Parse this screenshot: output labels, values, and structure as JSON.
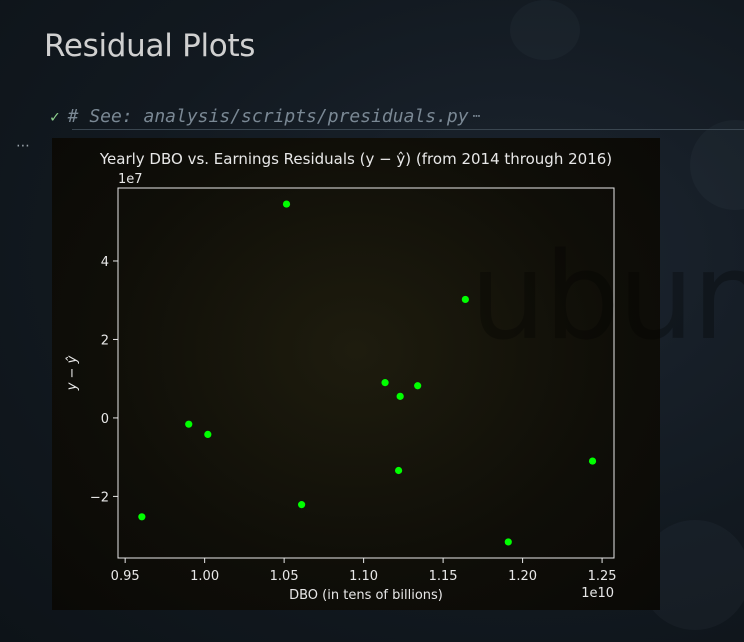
{
  "page": {
    "heading": "Residual Plots",
    "code_comment": "# See: analysis/scripts/presiduals.py",
    "code_ellipsis": "⋯",
    "gutter_dots": "⋯",
    "watermark": "ubuntu"
  },
  "colors": {
    "point": "#00ff00",
    "axis": "#e8e8e8",
    "check": "#8fd18f"
  },
  "chart_data": {
    "type": "scatter",
    "title": "Yearly DBO vs. Earnings Residuals (y − ŷ) (from 2014 through 2016)",
    "xlabel": "DBO (in tens of billions)",
    "ylabel": "y − ŷ",
    "x_offset_label": "1e10",
    "y_offset_label": "1e7",
    "xlim": [
      0.9455,
      1.2575
    ],
    "ylim": [
      -3.57,
      5.86
    ],
    "xticks": [
      0.95,
      1.0,
      1.05,
      1.1,
      1.15,
      1.2,
      1.25
    ],
    "xtick_labels": [
      "0.95",
      "1.00",
      "1.05",
      "1.10",
      "1.15",
      "1.20",
      "1.25"
    ],
    "yticks": [
      -2,
      0,
      2,
      4
    ],
    "ytick_labels": [
      "−2",
      "0",
      "2",
      "4"
    ],
    "grid": false,
    "points": [
      {
        "x": 0.9605,
        "y": -2.52
      },
      {
        "x": 0.99,
        "y": -0.16
      },
      {
        "x": 1.002,
        "y": -0.42
      },
      {
        "x": 1.0515,
        "y": 5.45
      },
      {
        "x": 1.061,
        "y": -2.21
      },
      {
        "x": 1.1135,
        "y": 0.9
      },
      {
        "x": 1.122,
        "y": -1.34
      },
      {
        "x": 1.123,
        "y": 0.55
      },
      {
        "x": 1.134,
        "y": 0.82
      },
      {
        "x": 1.164,
        "y": 3.02
      },
      {
        "x": 1.191,
        "y": -3.16
      },
      {
        "x": 1.244,
        "y": -1.1
      }
    ]
  }
}
